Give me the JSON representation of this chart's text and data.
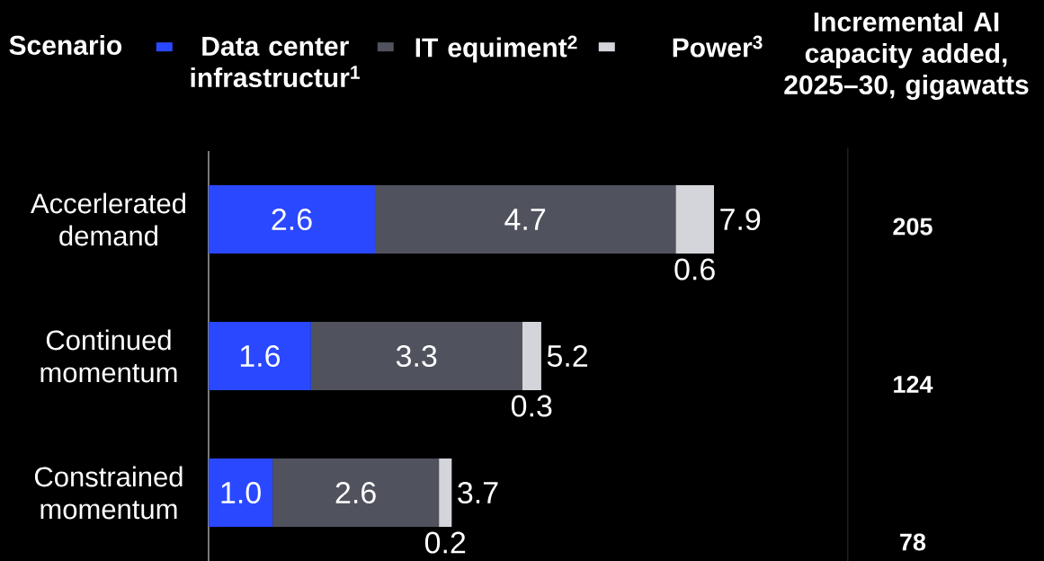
{
  "chart_data": [
    {
      "type": "bar",
      "orientation": "horizontal",
      "stacked": true,
      "ylabel": "Scenario",
      "legend": "top",
      "categories": [
        "Accerlerated demand",
        "Continued momentum",
        "Constrained momentum"
      ],
      "series": [
        {
          "name": "Data center infrastructur$^{1}$",
          "color": "#2a48ff",
          "values": [
            2.6,
            1.6,
            1.0
          ],
          "value_labels": [
            "2.6",
            "1.6",
            "1.0"
          ]
        },
        {
          "name": "IT equiment$^{2}$",
          "color": "#50535e",
          "values": [
            4.7,
            3.3,
            2.6
          ],
          "value_labels": [
            "4.7",
            "3.3",
            "2.6"
          ]
        },
        {
          "name": "Power$^{3}$",
          "color": "#d4d5da",
          "values": [
            0.6,
            0.3,
            0.2
          ],
          "value_labels": [
            "0.6",
            "0.3",
            "0.2"
          ]
        }
      ],
      "totals": [
        "7.9",
        "5.2",
        "3.7"
      ]
    },
    {
      "type": "other",
      "title": "Incremental AI capacity added, 2025–30, gigawatts",
      "categories": [
        null,
        null,
        null
      ],
      "values": [
        205,
        124,
        78
      ],
      "data_labels": true
    }
  ]
}
